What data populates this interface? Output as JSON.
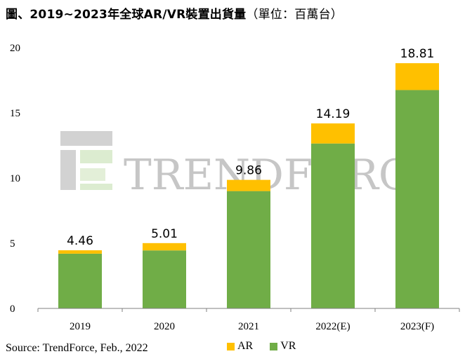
{
  "title": {
    "main": "圖、2019~2023年全球AR/VR裝置出貨量",
    "unit": "（單位：百萬台）"
  },
  "watermark": "TRENDFORCE",
  "source": "Source: TrendForce, Feb., 2022",
  "colors": {
    "AR": "#ffc000",
    "VR": "#70ad47",
    "axis": "#808080"
  },
  "chart_data": {
    "type": "bar",
    "stacked": true,
    "categories": [
      "2019",
      "2020",
      "2021",
      "2022(E)",
      "2023(F)"
    ],
    "series": [
      {
        "name": "VR",
        "values": [
          4.2,
          4.45,
          9.0,
          12.65,
          16.75
        ]
      },
      {
        "name": "AR",
        "values": [
          0.26,
          0.56,
          0.86,
          1.54,
          2.06
        ]
      }
    ],
    "totals": [
      "4.46",
      "5.01",
      "9.86",
      "14.19",
      "18.81"
    ],
    "ylim": [
      0,
      20
    ],
    "yticks": [
      0,
      5,
      10,
      15,
      20
    ],
    "grid": false,
    "legend": "bottom"
  }
}
